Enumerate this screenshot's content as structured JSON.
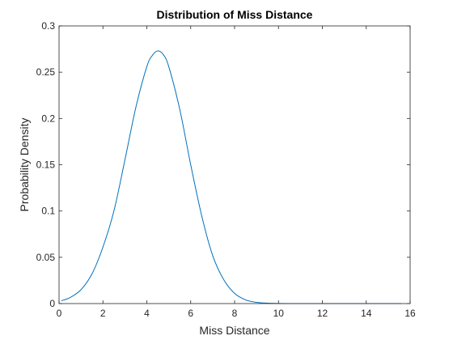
{
  "chart_data": {
    "type": "line",
    "title": "Distribution of Miss Distance",
    "xlabel": "Miss Distance",
    "ylabel": "Probability Density",
    "xlim": [
      0,
      16
    ],
    "ylim": [
      0,
      0.3
    ],
    "xticks": [
      0,
      2,
      4,
      6,
      8,
      10,
      12,
      14,
      16
    ],
    "xtick_labels": [
      "0",
      "2",
      "4",
      "6",
      "8",
      "10",
      "12",
      "14",
      "16"
    ],
    "yticks": [
      0,
      0.05,
      0.1,
      0.15,
      0.2,
      0.25,
      0.3
    ],
    "ytick_labels": [
      "0",
      "0.05",
      "0.1",
      "0.15",
      "0.2",
      "0.25",
      "0.3"
    ],
    "grid": false,
    "series": [
      {
        "color": "#0072bd",
        "x": [
          0.1,
          0.5,
          1.0,
          1.5,
          2.0,
          2.5,
          3.0,
          3.5,
          4.0,
          4.25,
          4.5,
          4.75,
          5.0,
          5.5,
          6.0,
          6.5,
          7.0,
          7.5,
          8.0,
          8.5,
          9.0,
          9.5,
          10.0,
          10.5,
          11.0,
          12.0,
          13.0,
          14.0,
          15.6
        ],
        "y": [
          0.003,
          0.0065,
          0.015,
          0.032,
          0.061,
          0.1,
          0.155,
          0.212,
          0.256,
          0.268,
          0.273,
          0.269,
          0.256,
          0.21,
          0.15,
          0.095,
          0.052,
          0.026,
          0.011,
          0.004,
          0.0013,
          0.0004,
          0.0001,
          3e-05,
          0.0,
          0.0,
          0.0,
          0.0,
          0.0
        ]
      }
    ]
  }
}
